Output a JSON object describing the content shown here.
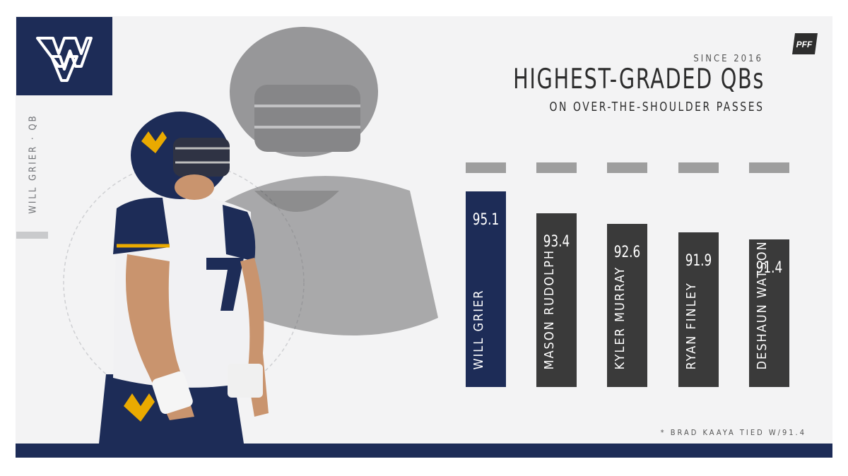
{
  "side_label": "WILL GRIER · QB",
  "pff_logo": "PFF",
  "colors": {
    "navy": "#1d2c57",
    "dark": "#3a3a3a",
    "cap": "#9e9e9e"
  },
  "chart_data": {
    "type": "bar",
    "title": "HIGHEST-GRADED QBs",
    "subtitle": "ON OVER-THE-SHOULDER PASSES",
    "kicker": "SINCE 2016",
    "categories": [
      "WILL GRIER",
      "MASON RUDOLPH",
      "KYLER MURRAY",
      "RYAN FINLEY",
      "DESHAUN WATSON"
    ],
    "values": [
      95.1,
      93.4,
      92.6,
      91.9,
      91.4
    ],
    "labels": [
      "95.1",
      "93.4",
      "92.6",
      "91.9",
      "91.4"
    ],
    "highlight": "WILL GRIER",
    "footnote": "* BRAD KAAYA TIED W/91.4"
  }
}
